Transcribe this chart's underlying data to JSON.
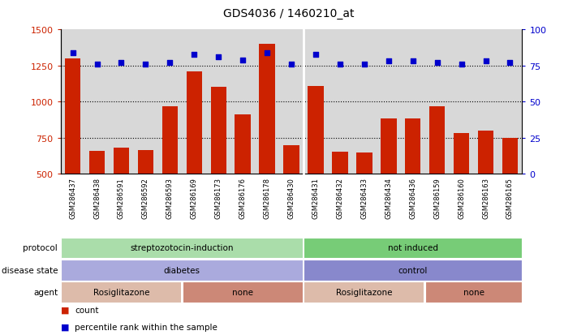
{
  "title": "GDS4036 / 1460210_at",
  "samples": [
    "GSM286437",
    "GSM286438",
    "GSM286591",
    "GSM286592",
    "GSM286593",
    "GSM286169",
    "GSM286173",
    "GSM286176",
    "GSM286178",
    "GSM286430",
    "GSM286431",
    "GSM286432",
    "GSM286433",
    "GSM286434",
    "GSM286436",
    "GSM286159",
    "GSM286160",
    "GSM286163",
    "GSM286165"
  ],
  "counts": [
    1300,
    660,
    680,
    665,
    970,
    1210,
    1105,
    910,
    1400,
    700,
    1110,
    655,
    650,
    885,
    885,
    970,
    785,
    800,
    750
  ],
  "percentiles": [
    84,
    76,
    77,
    76,
    77,
    83,
    81,
    79,
    84,
    76,
    83,
    76,
    76,
    78,
    78,
    77,
    76,
    78,
    77
  ],
  "ylim_left": [
    500,
    1500
  ],
  "ylim_right": [
    0,
    100
  ],
  "yticks_left": [
    500,
    750,
    1000,
    1250,
    1500
  ],
  "yticks_right": [
    0,
    25,
    50,
    75,
    100
  ],
  "bar_color": "#cc2200",
  "dot_color": "#0000cc",
  "bg_color": "#d8d8d8",
  "protocol_groups": [
    {
      "label": "streptozotocin-induction",
      "start": 0,
      "end": 10,
      "color": "#aaddaa"
    },
    {
      "label": "not induced",
      "start": 10,
      "end": 19,
      "color": "#77cc77"
    }
  ],
  "disease_groups": [
    {
      "label": "diabetes",
      "start": 0,
      "end": 10,
      "color": "#aaaadd"
    },
    {
      "label": "control",
      "start": 10,
      "end": 19,
      "color": "#8888cc"
    }
  ],
  "agent_groups": [
    {
      "label": "Rosiglitazone",
      "start": 0,
      "end": 5,
      "color": "#ddbbaa"
    },
    {
      "label": "none",
      "start": 5,
      "end": 10,
      "color": "#cc8877"
    },
    {
      "label": "Rosiglitazone",
      "start": 10,
      "end": 15,
      "color": "#ddbbaa"
    },
    {
      "label": "none",
      "start": 15,
      "end": 19,
      "color": "#cc8877"
    }
  ],
  "separator_idx": 10,
  "legend_count_color": "#cc2200",
  "legend_dot_color": "#0000cc",
  "row_labels": [
    "protocol",
    "disease state",
    "agent"
  ]
}
